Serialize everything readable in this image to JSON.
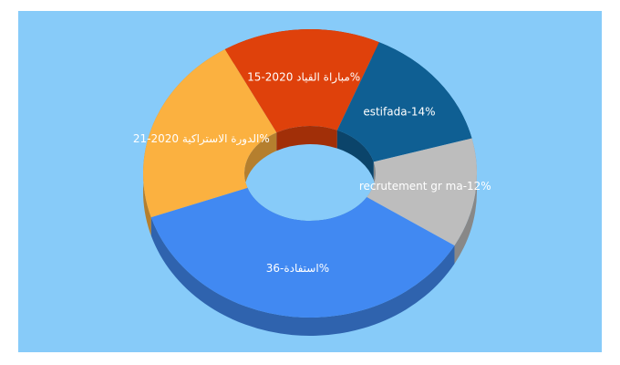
{
  "chart_data": {
    "type": "donut",
    "values": [
      36,
      21,
      15,
      14,
      12
    ],
    "value_labels": [
      "استفادة-36%",
      "الدورة الاستراكية 2020-21%",
      "مباراة القياد 2020-15%",
      "estifada-14%",
      "recrutement gr ma-12%"
    ],
    "colors": [
      "#4189f2",
      "#fbb140",
      "#df410b",
      "#0f5f93",
      "#bdbdbd"
    ]
  }
}
